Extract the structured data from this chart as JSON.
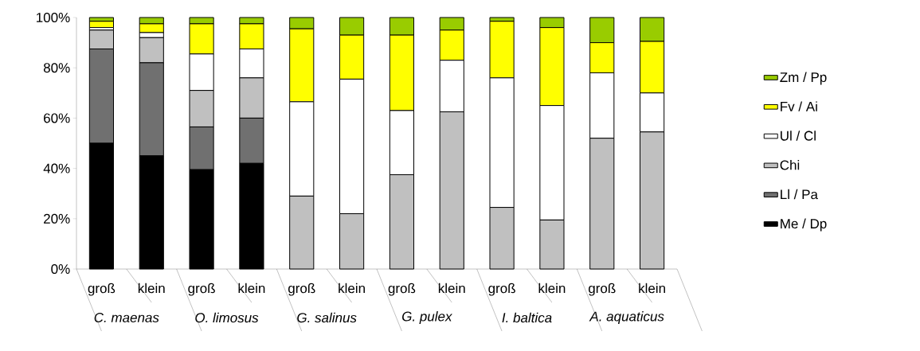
{
  "chart_data": {
    "type": "bar",
    "stacked": true,
    "categories": [
      "groß",
      "klein",
      "groß",
      "klein",
      "groß",
      "klein",
      "groß",
      "klein",
      "groß",
      "klein",
      "groß",
      "klein"
    ],
    "annotations": [
      "C. maenas",
      "O. limosus",
      "G. salinus",
      "G. pulex",
      "I. baltica",
      "A. aquaticus"
    ],
    "ylim": [
      0,
      100
    ],
    "yticks": [
      {
        "value": 0,
        "label": "0%"
      },
      {
        "value": 20,
        "label": "20%"
      },
      {
        "value": 40,
        "label": "40%"
      },
      {
        "value": 60,
        "label": "60%"
      },
      {
        "value": 80,
        "label": "80%"
      },
      {
        "value": 100,
        "label": "100%"
      }
    ],
    "legend": "right",
    "series": [
      {
        "name": "Me / Dp",
        "color": "#000000",
        "values": [
          50,
          45,
          39.5,
          42,
          0,
          0,
          0,
          0,
          0,
          0,
          0,
          0
        ]
      },
      {
        "name": "Ll / Pa",
        "color": "#707070",
        "values": [
          37.5,
          37,
          17,
          18,
          0,
          0,
          0,
          0,
          0,
          0,
          0,
          0
        ]
      },
      {
        "name": "Chi",
        "color": "#c0c0c0",
        "values": [
          7.5,
          10,
          14.5,
          16,
          29,
          22,
          37.5,
          62.5,
          24.5,
          19.5,
          52,
          54.5
        ]
      },
      {
        "name": "Ul / Cl",
        "color": "#ffffff",
        "values": [
          1,
          2,
          14.5,
          11.5,
          37.5,
          53.5,
          25.5,
          20.5,
          51.5,
          45.5,
          26,
          15.5
        ]
      },
      {
        "name": "Fv / Ai",
        "color": "#ffff00",
        "values": [
          2.5,
          3.5,
          12,
          10,
          29,
          17.5,
          30,
          12,
          22.5,
          31,
          12,
          20.5
        ]
      },
      {
        "name": "Zm / Pp",
        "color": "#99cc00",
        "values": [
          1.5,
          2.5,
          2.5,
          2.5,
          4.5,
          7,
          7,
          5,
          1.5,
          4,
          10,
          9.5
        ]
      }
    ]
  }
}
